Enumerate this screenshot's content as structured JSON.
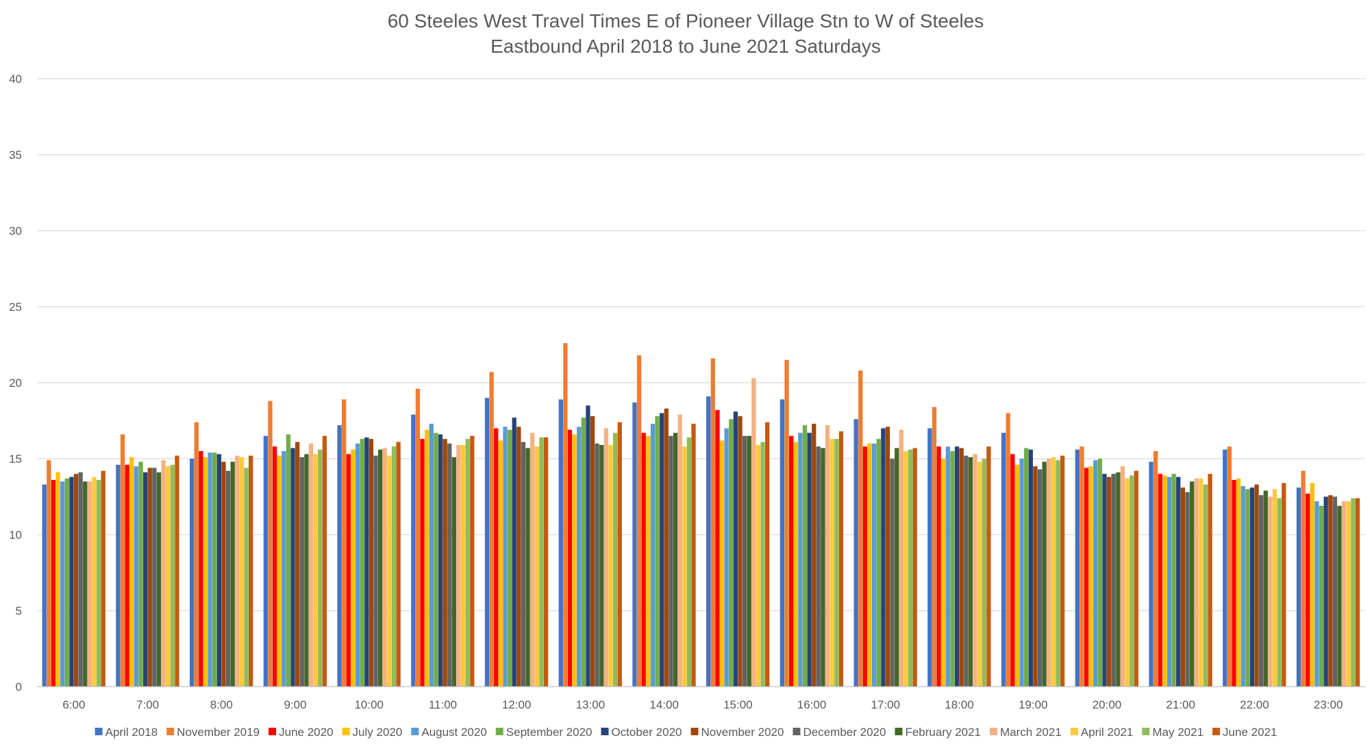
{
  "chart_data": {
    "type": "bar",
    "title": "60 Steeles West Travel Times E of Pioneer Village Stn to W of Steeles",
    "subtitle": "Eastbound April 2018 to June 2021 Saturdays",
    "xlabel": "",
    "ylabel": "",
    "ylim": [
      0,
      40
    ],
    "yticks": [
      0,
      5,
      10,
      15,
      20,
      25,
      30,
      35,
      40
    ],
    "grid": true,
    "legend_position": "bottom",
    "categories": [
      "6:00",
      "7:00",
      "8:00",
      "9:00",
      "10:00",
      "11:00",
      "12:00",
      "13:00",
      "14:00",
      "15:00",
      "16:00",
      "17:00",
      "18:00",
      "19:00",
      "20:00",
      "21:00",
      "22:00",
      "23:00"
    ],
    "series": [
      {
        "name": "April 2018",
        "color": "#4472C4",
        "values": [
          13.3,
          14.6,
          15.0,
          16.5,
          17.2,
          17.9,
          19.0,
          18.9,
          18.7,
          19.1,
          18.9,
          17.6,
          17.0,
          16.7,
          15.6,
          14.8,
          15.6,
          13.1
        ]
      },
      {
        "name": "November 2019",
        "color": "#ED7D31",
        "values": [
          14.9,
          16.6,
          17.4,
          18.8,
          18.9,
          19.6,
          20.7,
          22.6,
          21.8,
          21.6,
          21.5,
          20.8,
          18.4,
          18.0,
          15.8,
          15.5,
          15.8,
          14.2
        ]
      },
      {
        "name": "June 2020",
        "color": "#FF0000",
        "values": [
          13.6,
          14.6,
          15.5,
          15.8,
          15.3,
          16.3,
          17.0,
          16.9,
          16.7,
          18.2,
          16.5,
          15.8,
          15.8,
          15.3,
          14.4,
          14.0,
          13.6,
          12.7
        ]
      },
      {
        "name": "July 2020",
        "color": "#FFC000",
        "values": [
          14.1,
          15.1,
          15.1,
          15.2,
          15.6,
          16.9,
          16.2,
          16.6,
          16.5,
          16.2,
          16.1,
          16.0,
          15.0,
          14.6,
          14.5,
          13.9,
          13.7,
          13.4
        ]
      },
      {
        "name": "August 2020",
        "color": "#5B9BD5",
        "values": [
          13.5,
          14.5,
          15.4,
          15.5,
          16.0,
          17.3,
          17.1,
          17.1,
          17.3,
          17.0,
          16.7,
          16.0,
          15.8,
          15.0,
          14.9,
          13.8,
          13.2,
          12.2
        ]
      },
      {
        "name": "September 2020",
        "color": "#70AD47",
        "values": [
          13.7,
          14.8,
          15.4,
          16.6,
          16.3,
          16.7,
          16.9,
          17.7,
          17.8,
          17.6,
          17.2,
          16.3,
          15.5,
          15.7,
          15.0,
          14.0,
          13.0,
          11.9
        ]
      },
      {
        "name": "October 2020",
        "color": "#264478",
        "values": [
          13.8,
          14.1,
          15.3,
          15.7,
          16.4,
          16.6,
          17.7,
          18.5,
          18.0,
          18.1,
          16.7,
          17.0,
          15.8,
          15.6,
          14.0,
          13.8,
          13.1,
          12.5
        ]
      },
      {
        "name": "November 2020",
        "color": "#9E480E",
        "values": [
          14.0,
          14.4,
          14.8,
          16.1,
          16.3,
          16.3,
          17.1,
          17.8,
          18.3,
          17.8,
          17.3,
          17.1,
          15.7,
          14.5,
          13.8,
          13.1,
          13.3,
          12.6
        ]
      },
      {
        "name": "December 2020",
        "color": "#636363",
        "values": [
          14.1,
          14.4,
          14.2,
          15.1,
          15.2,
          16.0,
          16.1,
          16.0,
          16.5,
          16.5,
          15.8,
          15.0,
          15.2,
          14.3,
          14.0,
          12.8,
          12.6,
          12.5
        ]
      },
      {
        "name": "February 2021",
        "color": "#43682B",
        "values": [
          13.5,
          14.1,
          14.8,
          15.3,
          15.6,
          15.1,
          15.7,
          15.9,
          16.7,
          16.5,
          15.7,
          15.7,
          15.1,
          14.8,
          14.1,
          13.5,
          12.9,
          11.9
        ]
      },
      {
        "name": "March 2021",
        "color": "#F4B183",
        "values": [
          13.5,
          14.9,
          15.2,
          16.0,
          15.7,
          15.9,
          16.7,
          17.0,
          17.9,
          20.3,
          17.2,
          16.9,
          15.3,
          15.0,
          14.5,
          13.7,
          12.5,
          12.2
        ]
      },
      {
        "name": "April 2021",
        "color": "#FFC93C",
        "values": [
          13.8,
          14.5,
          15.1,
          15.3,
          15.2,
          15.9,
          15.8,
          15.9,
          15.8,
          15.9,
          16.3,
          15.5,
          14.8,
          15.1,
          13.7,
          13.7,
          13.0,
          12.2
        ]
      },
      {
        "name": "May 2021",
        "color": "#8FBC5A",
        "values": [
          13.6,
          14.6,
          14.4,
          15.6,
          15.8,
          16.3,
          16.4,
          16.7,
          16.4,
          16.1,
          16.3,
          15.6,
          15.0,
          14.9,
          13.9,
          13.3,
          12.4,
          12.4
        ]
      },
      {
        "name": "June 2021",
        "color": "#C55A11",
        "values": [
          14.2,
          15.2,
          15.2,
          16.5,
          16.1,
          16.5,
          16.4,
          17.4,
          17.3,
          17.4,
          16.8,
          15.7,
          15.8,
          15.2,
          14.2,
          14.0,
          13.4,
          12.4
        ]
      }
    ]
  }
}
